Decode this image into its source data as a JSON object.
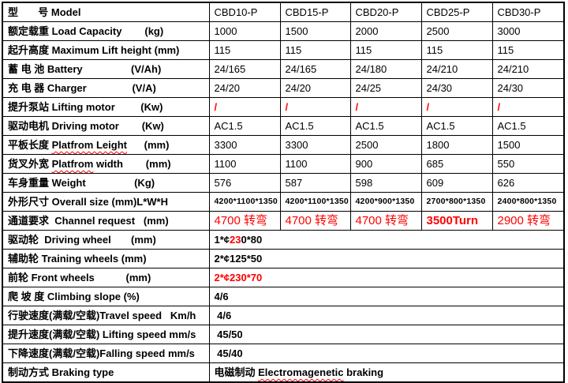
{
  "colors": {
    "text": "#000000",
    "red": "#ff0000",
    "border": "#000000",
    "background": "#ffffff"
  },
  "table": {
    "description": "electric pallet truck specification table",
    "rows": [
      {
        "label": [
          {
            "t": "型       号 Model"
          }
        ],
        "cells": [
          [
            {
              "t": "CBD10-P"
            }
          ],
          [
            {
              "t": "CBD15-P"
            }
          ],
          [
            {
              "t": "CBD20-P"
            }
          ],
          [
            {
              "t": "CBD25-P"
            }
          ],
          [
            {
              "t": "CBD30-P"
            }
          ]
        ]
      },
      {
        "label": [
          {
            "t": "额定载重 Load Capacity        (kg)"
          }
        ],
        "cells": [
          [
            {
              "t": "1000"
            }
          ],
          [
            {
              "t": "1500"
            }
          ],
          [
            {
              "t": "2000"
            }
          ],
          [
            {
              "t": "2500"
            }
          ],
          [
            {
              "t": "3000"
            }
          ]
        ]
      },
      {
        "label": [
          {
            "t": "起升高度 Maximum Lift height (mm)"
          }
        ],
        "cells": [
          [
            {
              "t": "115"
            }
          ],
          [
            {
              "t": "115"
            }
          ],
          [
            {
              "t": "115"
            }
          ],
          [
            {
              "t": "115"
            }
          ],
          [
            {
              "t": "115"
            }
          ]
        ]
      },
      {
        "label": [
          {
            "t": "蓄 电 池 Battery                 (V/Ah)"
          }
        ],
        "cells": [
          [
            {
              "t": "24/165"
            }
          ],
          [
            {
              "t": "24/165"
            }
          ],
          [
            {
              "t": "24/180"
            }
          ],
          [
            {
              "t": "24/210"
            }
          ],
          [
            {
              "t": "24/210"
            }
          ]
        ]
      },
      {
        "label": [
          {
            "t": "充 电 器 Charger                (V/A)"
          }
        ],
        "cells": [
          [
            {
              "t": "24/20"
            }
          ],
          [
            {
              "t": "24/20"
            }
          ],
          [
            {
              "t": "24/25"
            }
          ],
          [
            {
              "t": "24/30"
            }
          ],
          [
            {
              "t": "24/30"
            }
          ]
        ]
      },
      {
        "label": [
          {
            "t": "提升泵站 Lifting motor         (Kw)"
          }
        ],
        "cells": [
          [
            {
              "t": "/",
              "c": "red bold"
            }
          ],
          [
            {
              "t": "/",
              "c": "red bold"
            }
          ],
          [
            {
              "t": "/",
              "c": "red bold"
            }
          ],
          [
            {
              "t": "/",
              "c": "red bold"
            }
          ],
          [
            {
              "t": "/",
              "c": "red bold"
            }
          ]
        ]
      },
      {
        "label": [
          {
            "t": "驱动电机 Driving motor        (Kw)"
          }
        ],
        "cells": [
          [
            {
              "t": "AC1.5"
            }
          ],
          [
            {
              "t": "AC1.5"
            }
          ],
          [
            {
              "t": "AC1.5"
            }
          ],
          [
            {
              "t": "AC1.5"
            }
          ],
          [
            {
              "t": "AC1.5"
            }
          ]
        ]
      },
      {
        "label": [
          {
            "t": "平板长度 "
          },
          {
            "t": "Platfrom Leight",
            "c": "sq"
          },
          {
            "t": "      (mm)"
          }
        ],
        "cells": [
          [
            {
              "t": "3300"
            }
          ],
          [
            {
              "t": "3300"
            }
          ],
          [
            {
              "t": "2500"
            }
          ],
          [
            {
              "t": "1800"
            }
          ],
          [
            {
              "t": "1500"
            }
          ]
        ]
      },
      {
        "label": [
          {
            "t": "货叉外宽 "
          },
          {
            "t": "Platfrom",
            "c": "sq"
          },
          {
            "t": " width        (mm)"
          }
        ],
        "cells": [
          [
            {
              "t": "1100"
            }
          ],
          [
            {
              "t": "1100"
            }
          ],
          [
            {
              "t": "900"
            }
          ],
          [
            {
              "t": "685"
            }
          ],
          [
            {
              "t": "550"
            }
          ]
        ]
      },
      {
        "label": [
          {
            "t": "车身重量 Weight                 (Kg)"
          }
        ],
        "cells": [
          [
            {
              "t": "576"
            }
          ],
          [
            {
              "t": "587"
            }
          ],
          [
            {
              "t": "598"
            }
          ],
          [
            {
              "t": "609"
            }
          ],
          [
            {
              "t": "626"
            }
          ]
        ]
      },
      {
        "label": [
          {
            "t": "外形尺寸 Overall size (mm)L*W*H"
          }
        ],
        "vc": "small",
        "cells": [
          [
            {
              "t": "4200*1100*1350"
            }
          ],
          [
            {
              "t": "4200*1100*1350"
            }
          ],
          [
            {
              "t": "4200*900*1350"
            }
          ],
          [
            {
              "t": "2700*800*1350"
            }
          ],
          [
            {
              "t": "2400*800*1350"
            }
          ]
        ]
      },
      {
        "label": [
          {
            "t": "通道要求  Channel request   (mm)"
          }
        ],
        "vc": "bigred",
        "cells": [
          [
            {
              "t": "4700 转弯"
            }
          ],
          [
            {
              "t": "4700 转弯"
            }
          ],
          [
            {
              "t": "4700 转弯"
            }
          ],
          [
            {
              "t": "3500Turn",
              "c": "bold"
            }
          ],
          [
            {
              "t": "2900 转弯"
            }
          ]
        ]
      },
      {
        "label": [
          {
            "t": "驱动轮  Driving wheel       (mm)"
          }
        ],
        "vc": "bold",
        "span": [
          {
            "t": "1*¢"
          },
          {
            "t": "23",
            "c": "red"
          },
          {
            "t": "0*80"
          }
        ]
      },
      {
        "label": [
          {
            "t": "辅助轮 Training wheels (mm)"
          }
        ],
        "vc": "bold",
        "span": [
          {
            "t": "2*¢125*50"
          }
        ]
      },
      {
        "label": [
          {
            "t": "前轮 Front wheels           (mm)"
          }
        ],
        "vc": "bold",
        "span": [
          {
            "t": "2*¢230*70",
            "c": "red"
          }
        ]
      },
      {
        "label": [
          {
            "t": "爬 坡 度 Climbing slope (%)"
          }
        ],
        "vc": "bold",
        "span": [
          {
            "t": "4/6"
          }
        ]
      },
      {
        "label": [
          {
            "t": "行驶速度(满载/空载)Travel speed   Km/h"
          }
        ],
        "vc": "bold",
        "span": [
          {
            "t": " 4/6"
          }
        ]
      },
      {
        "label": [
          {
            "t": "提升速度(满载/空载) Lifting speed mm/s"
          }
        ],
        "vc": "bold",
        "span": [
          {
            "t": " 45/50"
          }
        ]
      },
      {
        "label": [
          {
            "t": "下降速度(满载/空载)Falling speed mm/s"
          }
        ],
        "vc": "bold",
        "span": [
          {
            "t": " 45/40"
          }
        ]
      },
      {
        "label": [
          {
            "t": "制动方式 Braking type"
          }
        ],
        "vc": "bold",
        "span": [
          {
            "t": "电磁制动 "
          },
          {
            "t": "Electromagenetic",
            "c": "sq"
          },
          {
            "t": " braking"
          }
        ]
      }
    ]
  }
}
